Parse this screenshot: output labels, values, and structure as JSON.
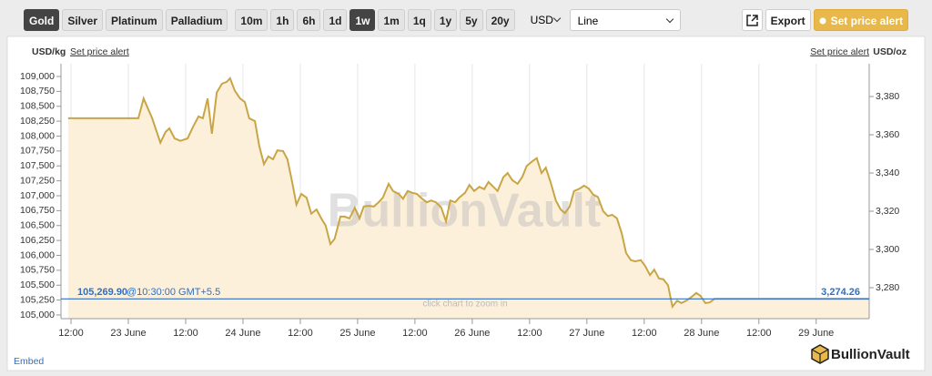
{
  "toolbar": {
    "metals": [
      "Gold",
      "Silver",
      "Platinum",
      "Palladium"
    ],
    "metal_selected": 0,
    "ranges": [
      "10m",
      "1h",
      "6h",
      "1d",
      "1w",
      "1m",
      "1q",
      "1y",
      "5y",
      "20y"
    ],
    "range_selected": 4,
    "currency": "USD",
    "chart_style": "Line",
    "export": "Export",
    "alert": "Set price alert"
  },
  "chart_data": {
    "type": "line",
    "y_label": "USD/kg",
    "y2_label": "USD/oz",
    "alert_left": "Set price alert",
    "alert_right": "Set price alert",
    "watermark": "BullionVault",
    "hint": "click chart to zoom in",
    "embed": "Embed",
    "logo": "BullionVault",
    "color": "#c8a545",
    "area_color": "#fdf0db",
    "grid": "x",
    "xlim": [
      -2.1,
      167.1
    ],
    "xticks": [
      {
        "value": 0,
        "label": "12:00"
      },
      {
        "value": 12,
        "label": "23 June"
      },
      {
        "value": 24,
        "label": "12:00"
      },
      {
        "value": 36,
        "label": "24 June"
      },
      {
        "value": 48,
        "label": "12:00"
      },
      {
        "value": 60,
        "label": "25 June"
      },
      {
        "value": 72,
        "label": "12:00"
      },
      {
        "value": 84,
        "label": "26 June"
      },
      {
        "value": 96,
        "label": "12:00"
      },
      {
        "value": 108,
        "label": "27 June"
      },
      {
        "value": 120,
        "label": "12:00"
      },
      {
        "value": 132,
        "label": "28 June"
      },
      {
        "value": 144,
        "label": "12:00"
      },
      {
        "value": 156,
        "label": "29 June"
      }
    ],
    "ylim": [
      105000,
      109000
    ],
    "yticks": [
      {
        "value": 105000,
        "label": "105,000"
      },
      {
        "value": 105250,
        "label": "105,250"
      },
      {
        "value": 105500,
        "label": "105,500"
      },
      {
        "value": 105750,
        "label": "105,750"
      },
      {
        "value": 106000,
        "label": "106,000"
      },
      {
        "value": 106250,
        "label": "106,250"
      },
      {
        "value": 106500,
        "label": "106,500"
      },
      {
        "value": 106750,
        "label": "106,750"
      },
      {
        "value": 107000,
        "label": "107,000"
      },
      {
        "value": 107250,
        "label": "107,250"
      },
      {
        "value": 107500,
        "label": "107,500"
      },
      {
        "value": 107750,
        "label": "107,750"
      },
      {
        "value": 108000,
        "label": "108,000"
      },
      {
        "value": 108250,
        "label": "108,250"
      },
      {
        "value": 108500,
        "label": "108,500"
      },
      {
        "value": 108750,
        "label": "108,750"
      },
      {
        "value": 109000,
        "label": "109,000"
      }
    ],
    "y2lim": [
      3265.7,
      3390.5
    ],
    "y2ticks": [
      {
        "value": 3280,
        "label": "3,280"
      },
      {
        "value": 3300,
        "label": "3,300"
      },
      {
        "value": 3320,
        "label": "3,320"
      },
      {
        "value": 3340,
        "label": "3,340"
      },
      {
        "value": 3360,
        "label": "3,360"
      },
      {
        "value": 3380,
        "label": "3,380"
      }
    ],
    "current_price": {
      "value": 105269.9,
      "label": "105,269.90"
    },
    "current_time": "@10:30:00 GMT+5.5",
    "current_price_oz": {
      "value": 3274.26,
      "label": "3,274.26"
    },
    "current_color": "#2f6fc4",
    "x": [
      -0.6,
      14.1,
      15.2,
      17.0,
      18.7,
      19.8,
      20.6,
      21.7,
      22.9,
      24.4,
      25.5,
      26.7,
      27.6,
      28.6,
      29.5,
      30.5,
      31.6,
      32.6,
      33.3,
      34.3,
      35.4,
      36.4,
      37.3,
      38.5,
      39.4,
      40.4,
      41.3,
      42.3,
      43.2,
      44.4,
      45.3,
      46.3,
      47.2,
      48.2,
      49.3,
      50.3,
      51.4,
      52.4,
      53.3,
      54.3,
      55.2,
      56.4,
      57.3,
      58.3,
      59.4,
      60.4,
      61.3,
      62.3,
      63.4,
      64.4,
      65.3,
      66.5,
      67.4,
      68.6,
      69.5,
      70.5,
      71.4,
      72.4,
      73.5,
      74.5,
      75.4,
      76.4,
      77.5,
      78.5,
      79.4,
      80.4,
      81.3,
      82.5,
      83.4,
      84.4,
      85.5,
      86.5,
      87.4,
      88.4,
      89.3,
      90.5,
      91.4,
      92.4,
      93.5,
      94.5,
      95.4,
      96.6,
      97.5,
      98.5,
      99.4,
      100.4,
      101.5,
      102.5,
      103.4,
      104.4,
      105.3,
      106.5,
      107.4,
      108.4,
      109.3,
      110.3,
      111.4,
      112.4,
      113.3,
      114.3,
      115.3,
      116.2,
      117.2,
      118.1,
      119.3,
      120.2,
      121.2,
      122.1,
      123.1,
      124.0,
      125.0,
      125.9,
      126.9,
      127.8,
      128.8,
      129.7,
      130.9,
      131.8,
      132.8,
      133.7,
      134.7,
      135.6,
      167.1
    ],
    "values": [
      108300,
      108300,
      108630,
      108300,
      107890,
      108070,
      108130,
      107960,
      107920,
      107960,
      108150,
      108330,
      108300,
      108630,
      108040,
      108730,
      108880,
      108910,
      108970,
      108760,
      108630,
      108570,
      108300,
      108250,
      107840,
      107530,
      107660,
      107610,
      107760,
      107750,
      107610,
      107230,
      106850,
      107030,
      106970,
      106700,
      106770,
      106620,
      106500,
      106190,
      106280,
      106650,
      106650,
      106620,
      106800,
      106620,
      106820,
      106830,
      106820,
      106890,
      106970,
      107200,
      107080,
      107030,
      106950,
      107080,
      107050,
      107030,
      106950,
      106890,
      106920,
      106890,
      106800,
      106570,
      106920,
      106890,
      106970,
      107050,
      107180,
      107080,
      107150,
      107110,
      107230,
      107150,
      107080,
      107310,
      107380,
      107260,
      107200,
      107320,
      107500,
      107580,
      107630,
      107380,
      107470,
      107230,
      106920,
      106770,
      106710,
      106820,
      107080,
      107120,
      107170,
      107120,
      107020,
      106980,
      106740,
      106660,
      106680,
      106620,
      106370,
      106040,
      105920,
      105900,
      105920,
      105820,
      105670,
      105760,
      105610,
      105600,
      105500,
      105140,
      105240,
      105200,
      105240,
      105290,
      105370,
      105320,
      105200,
      105210,
      105270,
      105270,
      105270
    ]
  }
}
